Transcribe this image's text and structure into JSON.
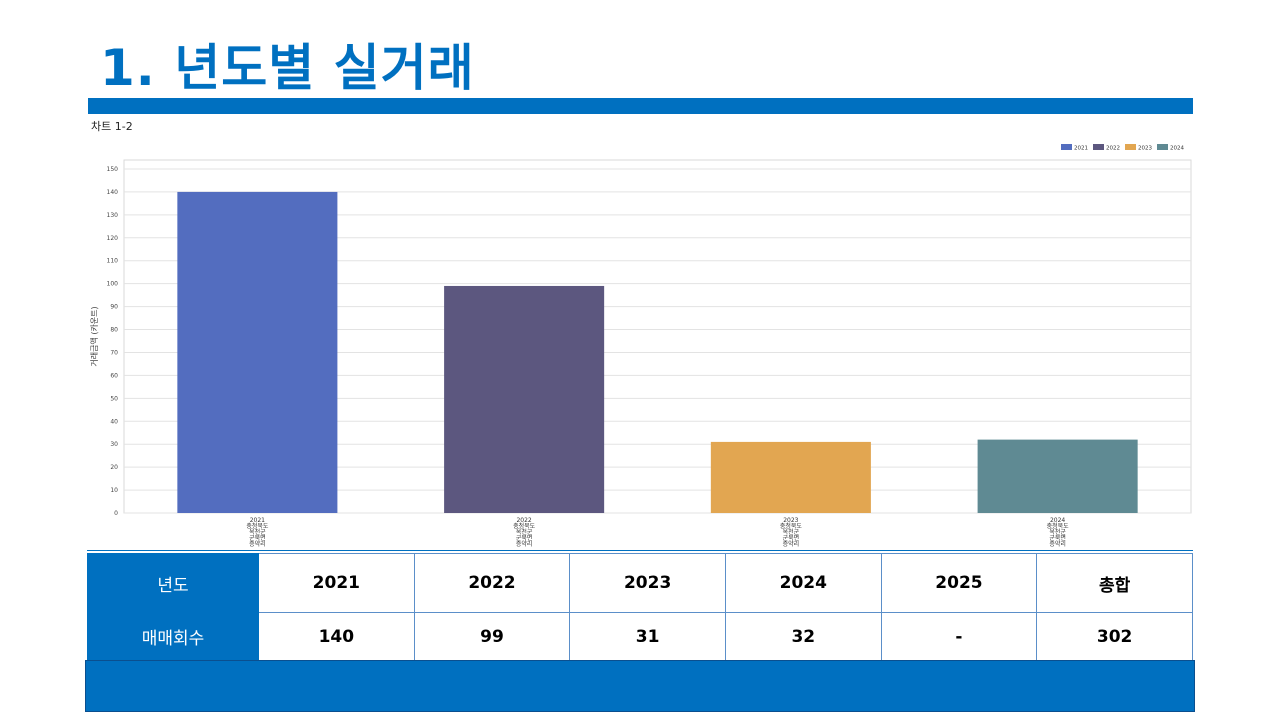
{
  "page": {
    "title": "1. 년도별 실거래",
    "chart_caption": "차트 1-2",
    "accent_color": "#0070c0"
  },
  "chart_data": {
    "type": "bar",
    "categories": [
      [
        "2021",
        "충청북도",
        "옥천군",
        "군북면",
        "증약리"
      ],
      [
        "2022",
        "충청북도",
        "옥천군",
        "군북면",
        "증약리"
      ],
      [
        "2023",
        "충청북도",
        "옥천군",
        "군북면",
        "증약리"
      ],
      [
        "2024",
        "충청북도",
        "옥천군",
        "군북면",
        "증약리"
      ]
    ],
    "values": [
      140,
      99,
      31,
      32
    ],
    "colors": [
      "#536dbf",
      "#5c577f",
      "#e2a651",
      "#5f8a93"
    ],
    "legend": [
      "2021",
      "2022",
      "2023",
      "2024"
    ],
    "legend_position": "top-right",
    "ylabel": "거래금액 (카운트)",
    "ylim": [
      0,
      150
    ],
    "yticks": [
      0,
      10,
      20,
      30,
      40,
      50,
      60,
      70,
      80,
      90,
      100,
      110,
      120,
      130,
      140,
      150
    ],
    "grid": true
  },
  "table": {
    "row1_header": "년도",
    "row1": [
      "2021",
      "2022",
      "2023",
      "2024",
      "2025",
      "총합"
    ],
    "row2_header": "매매회수",
    "row2": [
      "140",
      "99",
      "31",
      "32",
      "-",
      "302"
    ]
  }
}
